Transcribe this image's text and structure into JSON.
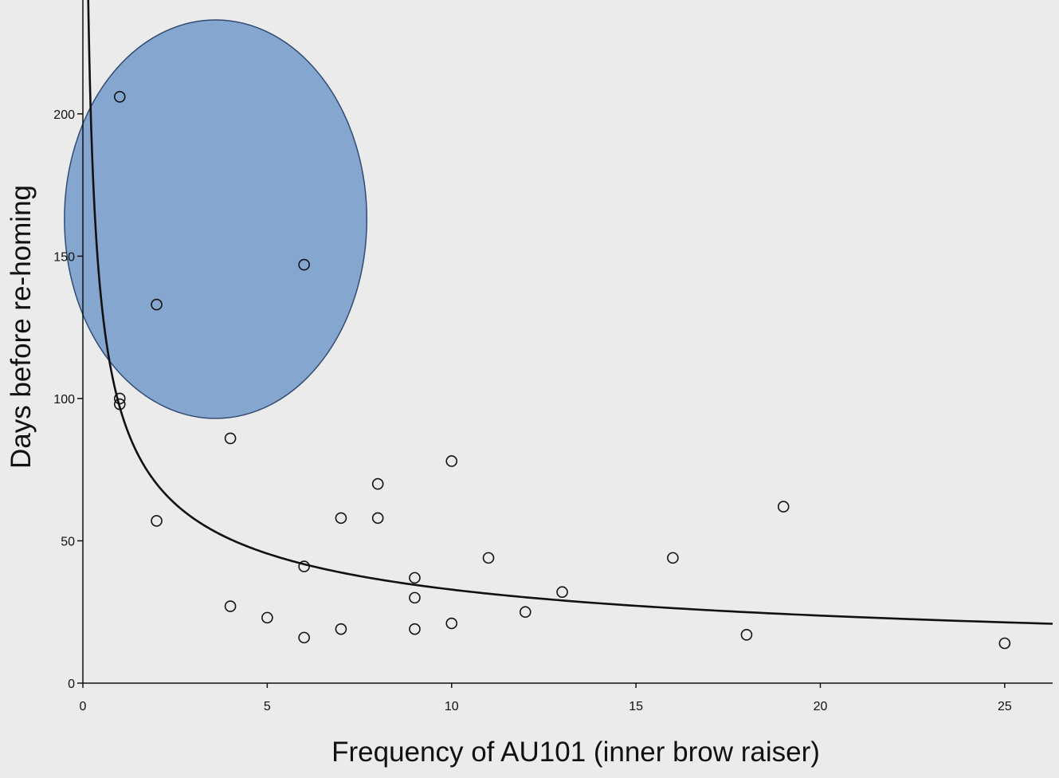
{
  "chart_data": {
    "type": "scatter",
    "xlabel": "Frequency of AU101 (inner brow raiser)",
    "ylabel": "Days before re-homing",
    "xlim": [
      0,
      26.3
    ],
    "ylim": [
      0,
      240
    ],
    "x_ticks": [
      0,
      5,
      10,
      15,
      20,
      25
    ],
    "y_ticks": [
      0,
      50,
      100,
      150,
      200
    ],
    "x_tick_labels": [
      "0",
      "5",
      "10",
      "15",
      "20",
      "25"
    ],
    "y_tick_labels": [
      "0",
      "50",
      "100",
      "150",
      "200"
    ],
    "grid": false,
    "legend": "none",
    "points": [
      {
        "x": 1,
        "y": 206
      },
      {
        "x": 1,
        "y": 100
      },
      {
        "x": 1,
        "y": 98
      },
      {
        "x": 2,
        "y": 133
      },
      {
        "x": 2,
        "y": 57
      },
      {
        "x": 4,
        "y": 86
      },
      {
        "x": 4,
        "y": 27
      },
      {
        "x": 5,
        "y": 23
      },
      {
        "x": 6,
        "y": 147
      },
      {
        "x": 6,
        "y": 41
      },
      {
        "x": 6,
        "y": 16
      },
      {
        "x": 7,
        "y": 58
      },
      {
        "x": 7,
        "y": 19
      },
      {
        "x": 8,
        "y": 70
      },
      {
        "x": 8,
        "y": 58
      },
      {
        "x": 9,
        "y": 37
      },
      {
        "x": 9,
        "y": 30
      },
      {
        "x": 9,
        "y": 19
      },
      {
        "x": 10,
        "y": 78
      },
      {
        "x": 10,
        "y": 21
      },
      {
        "x": 11,
        "y": 44
      },
      {
        "x": 12,
        "y": 25
      },
      {
        "x": 13,
        "y": 32
      },
      {
        "x": 16,
        "y": 44
      },
      {
        "x": 18,
        "y": 17
      },
      {
        "x": 19,
        "y": 62
      },
      {
        "x": 25,
        "y": 14
      }
    ],
    "fit_line": {
      "model": "power",
      "equation_form": "y = a * x^b",
      "a": 97,
      "b": -0.47
    },
    "highlight_ellipse": {
      "cx": 3.6,
      "cy": 163,
      "rx": 4.1,
      "ry": 70,
      "fill": "#7aa0cc",
      "stroke": "#1f3a66",
      "opacity": 0.9
    },
    "colors": {
      "background": "#ebebeb",
      "axis": "#111111",
      "marker_stroke": "#111111",
      "fit_line": "#111111"
    }
  }
}
